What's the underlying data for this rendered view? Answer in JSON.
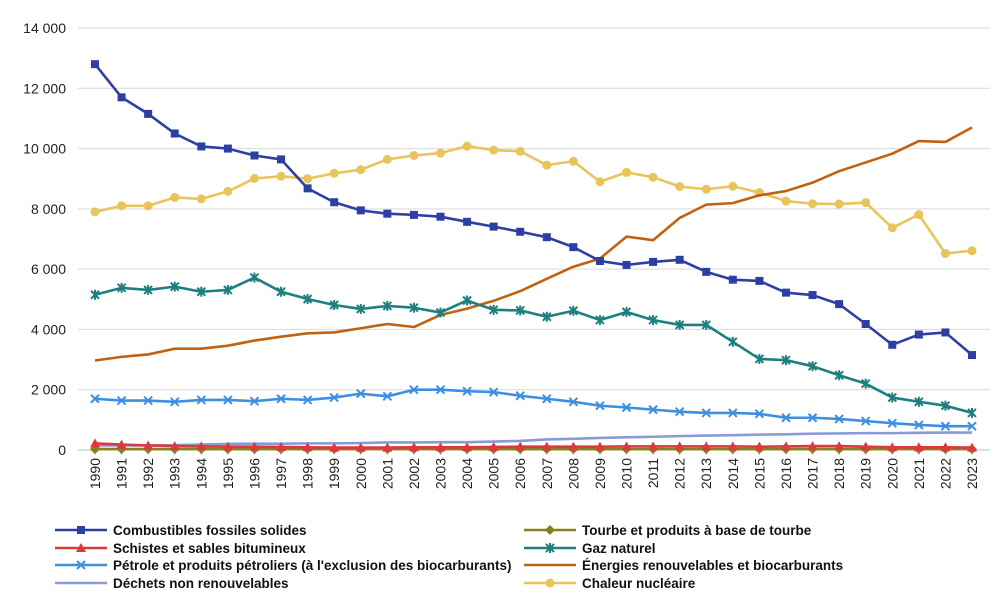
{
  "chart_data": {
    "type": "line",
    "title": "",
    "xlabel": "",
    "ylabel": "",
    "ylim": [
      0,
      14000
    ],
    "yticks": [
      0,
      2000,
      4000,
      6000,
      8000,
      10000,
      12000,
      14000
    ],
    "ytick_labels": [
      "0",
      "2 000",
      "4 000",
      "6 000",
      "8 000",
      "10 000",
      "12 000",
      "14 000"
    ],
    "x": [
      "1990",
      "1991",
      "1992",
      "1993",
      "1994",
      "1995",
      "1996",
      "1997",
      "1998",
      "1999",
      "2000",
      "2001",
      "2002",
      "2003",
      "2004",
      "2005",
      "2006",
      "2007",
      "2008",
      "2009",
      "2010",
      "2011",
      "2012",
      "2013",
      "2014",
      "2015",
      "2016",
      "2017",
      "2018",
      "2019",
      "2020",
      "2021",
      "2022",
      "2023"
    ],
    "grid": "horizontal",
    "legend_position": "bottom",
    "series": [
      {
        "name": "Combustibles fossiles solides",
        "color": "#2E3FA3",
        "marker": "square",
        "values": [
          12800,
          11700,
          11150,
          10500,
          10070,
          10000,
          9770,
          9640,
          8680,
          8220,
          7950,
          7840,
          7800,
          7740,
          7570,
          7410,
          7240,
          7060,
          6730,
          6270,
          6140,
          6240,
          6310,
          5910,
          5650,
          5610,
          5220,
          5140,
          4840,
          4180,
          3490,
          3830,
          3900,
          3150
        ]
      },
      {
        "name": "Tourbe et produits à base de tourbe",
        "color": "#8B7E1E",
        "marker": "diamond",
        "values": [
          30,
          30,
          30,
          30,
          30,
          30,
          30,
          30,
          30,
          30,
          30,
          30,
          30,
          30,
          30,
          30,
          30,
          30,
          30,
          30,
          30,
          30,
          30,
          30,
          30,
          30,
          30,
          30,
          30,
          30,
          30,
          30,
          30,
          30
        ]
      },
      {
        "name": "Schistes et sables bitumineux",
        "color": "#D93A3A",
        "marker": "triangle",
        "values": [
          220,
          180,
          150,
          130,
          120,
          110,
          110,
          100,
          90,
          80,
          80,
          80,
          90,
          90,
          90,
          100,
          110,
          110,
          110,
          110,
          120,
          120,
          120,
          120,
          120,
          110,
          120,
          130,
          130,
          110,
          90,
          90,
          90,
          80
        ]
      },
      {
        "name": "Gaz naturel",
        "color": "#1E7F7F",
        "marker": "cross",
        "values": [
          5150,
          5380,
          5310,
          5420,
          5250,
          5310,
          5720,
          5250,
          5010,
          4810,
          4680,
          4780,
          4720,
          4560,
          4960,
          4650,
          4630,
          4420,
          4620,
          4310,
          4580,
          4310,
          4150,
          4150,
          3590,
          3020,
          2980,
          2780,
          2480,
          2200,
          1740,
          1600,
          1470,
          1230
        ]
      },
      {
        "name": "Pétrole et produits pétroliers (à l'exclusion des biocarburants)",
        "color": "#3D8FE0",
        "marker": "x",
        "values": [
          1700,
          1640,
          1640,
          1600,
          1660,
          1660,
          1620,
          1700,
          1660,
          1740,
          1870,
          1780,
          2000,
          2000,
          1950,
          1920,
          1800,
          1700,
          1600,
          1470,
          1410,
          1340,
          1270,
          1230,
          1230,
          1200,
          1070,
          1070,
          1030,
          960,
          890,
          830,
          790,
          790
        ]
      },
      {
        "name": "Énergies renouvelables et biocarburants",
        "color": "#C0620F",
        "marker": "none",
        "values": [
          2970,
          3090,
          3170,
          3360,
          3360,
          3460,
          3630,
          3760,
          3870,
          3900,
          4040,
          4180,
          4080,
          4480,
          4690,
          4950,
          5270,
          5680,
          6080,
          6350,
          7080,
          6960,
          7700,
          8140,
          8190,
          8450,
          8590,
          8870,
          9250,
          9540,
          9830,
          10250,
          10220,
          10700
        ]
      },
      {
        "name": "Déchets non renouvelables",
        "color": "#8A9AD6",
        "marker": "none",
        "values": [
          150,
          150,
          150,
          160,
          180,
          200,
          210,
          210,
          220,
          220,
          230,
          250,
          250,
          260,
          260,
          280,
          300,
          350,
          370,
          400,
          420,
          440,
          460,
          480,
          490,
          510,
          520,
          540,
          550,
          560,
          560,
          570,
          580,
          580
        ]
      },
      {
        "name": "Chaleur nucléaire",
        "color": "#E8C45A",
        "marker": "circle",
        "values": [
          7900,
          8100,
          8100,
          8380,
          8330,
          8580,
          9010,
          9080,
          9000,
          9180,
          9300,
          9640,
          9770,
          9850,
          10080,
          9950,
          9910,
          9450,
          9580,
          8900,
          9210,
          9050,
          8740,
          8650,
          8750,
          8540,
          8260,
          8170,
          8160,
          8210,
          7370,
          7810,
          6520,
          6610
        ]
      }
    ]
  }
}
